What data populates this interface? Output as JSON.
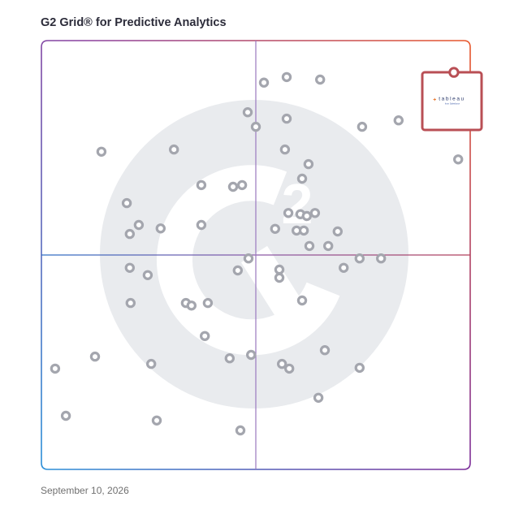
{
  "header": {
    "title": "G2 Grid® for Predictive Analytics"
  },
  "footer": {
    "date": "September 10, 2026"
  },
  "colors": {
    "highlight": "#b94f55",
    "dot_stroke": "#a4a6ae",
    "watermark": "#e9ebee",
    "border_bottom_left": "#2a8fd8",
    "border_top_right": "#e8562a",
    "border_bottom_right": "#7b2d99",
    "divider_horizontal": "#a34a66",
    "divider_vertical": "#9a78bf"
  },
  "chart_data": {
    "type": "scatter",
    "title": "G2 Grid® for Predictive Analytics",
    "xlabel": "",
    "ylabel": "",
    "xlim": [
      0,
      1
    ],
    "ylim": [
      0,
      1
    ],
    "grid": false,
    "quadrant_dividers": {
      "x": 0.5,
      "y": 0.5
    },
    "watermark_icon": "g2-logo",
    "highlighted": {
      "name": "tableau",
      "subtitle": "from Salesforce",
      "x": 0.962,
      "y": 0.926
    },
    "points": [
      {
        "x": 0.519,
        "y": 0.902
      },
      {
        "x": 0.572,
        "y": 0.915
      },
      {
        "x": 0.65,
        "y": 0.909
      },
      {
        "x": 0.481,
        "y": 0.833
      },
      {
        "x": 0.5,
        "y": 0.799
      },
      {
        "x": 0.572,
        "y": 0.818
      },
      {
        "x": 0.748,
        "y": 0.799
      },
      {
        "x": 0.833,
        "y": 0.814
      },
      {
        "x": 0.972,
        "y": 0.723
      },
      {
        "x": 0.14,
        "y": 0.741
      },
      {
        "x": 0.309,
        "y": 0.746
      },
      {
        "x": 0.568,
        "y": 0.746
      },
      {
        "x": 0.623,
        "y": 0.712
      },
      {
        "x": 0.608,
        "y": 0.678
      },
      {
        "x": 0.373,
        "y": 0.663
      },
      {
        "x": 0.447,
        "y": 0.659
      },
      {
        "x": 0.468,
        "y": 0.663
      },
      {
        "x": 0.199,
        "y": 0.621
      },
      {
        "x": 0.576,
        "y": 0.598
      },
      {
        "x": 0.604,
        "y": 0.595
      },
      {
        "x": 0.619,
        "y": 0.591
      },
      {
        "x": 0.638,
        "y": 0.598
      },
      {
        "x": 0.227,
        "y": 0.57
      },
      {
        "x": 0.373,
        "y": 0.57
      },
      {
        "x": 0.545,
        "y": 0.561
      },
      {
        "x": 0.595,
        "y": 0.557
      },
      {
        "x": 0.612,
        "y": 0.557
      },
      {
        "x": 0.691,
        "y": 0.555
      },
      {
        "x": 0.206,
        "y": 0.549
      },
      {
        "x": 0.625,
        "y": 0.521
      },
      {
        "x": 0.669,
        "y": 0.521
      },
      {
        "x": 0.483,
        "y": 0.492
      },
      {
        "x": 0.742,
        "y": 0.492
      },
      {
        "x": 0.792,
        "y": 0.492
      },
      {
        "x": 0.705,
        "y": 0.47
      },
      {
        "x": 0.206,
        "y": 0.47
      },
      {
        "x": 0.278,
        "y": 0.562
      },
      {
        "x": 0.555,
        "y": 0.466
      },
      {
        "x": 0.458,
        "y": 0.464
      },
      {
        "x": 0.555,
        "y": 0.447
      },
      {
        "x": 0.248,
        "y": 0.453
      },
      {
        "x": 0.608,
        "y": 0.394
      },
      {
        "x": 0.208,
        "y": 0.388
      },
      {
        "x": 0.337,
        "y": 0.388
      },
      {
        "x": 0.35,
        "y": 0.382
      },
      {
        "x": 0.388,
        "y": 0.388
      },
      {
        "x": 0.381,
        "y": 0.311
      },
      {
        "x": 0.661,
        "y": 0.278
      },
      {
        "x": 0.125,
        "y": 0.263
      },
      {
        "x": 0.256,
        "y": 0.246
      },
      {
        "x": 0.439,
        "y": 0.259
      },
      {
        "x": 0.489,
        "y": 0.267
      },
      {
        "x": 0.561,
        "y": 0.246
      },
      {
        "x": 0.578,
        "y": 0.235
      },
      {
        "x": 0.742,
        "y": 0.237
      },
      {
        "x": 0.032,
        "y": 0.235
      },
      {
        "x": 0.646,
        "y": 0.167
      },
      {
        "x": 0.057,
        "y": 0.125
      },
      {
        "x": 0.269,
        "y": 0.114
      },
      {
        "x": 0.464,
        "y": 0.091
      }
    ]
  }
}
